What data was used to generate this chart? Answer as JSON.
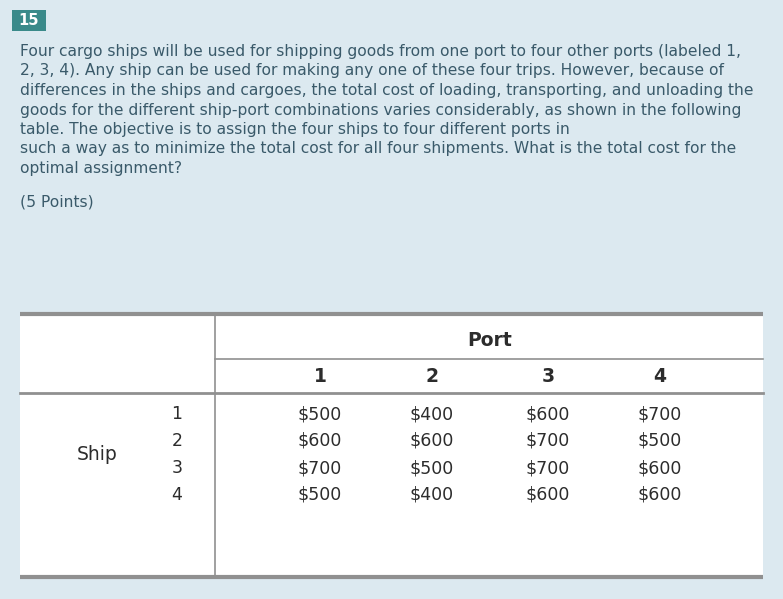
{
  "question_number": "15",
  "question_number_bg": "#3a8a8a",
  "question_number_color": "#ffffff",
  "background_color": "#dce9f0",
  "table_bg": "#ffffff",
  "table_outer_bg": "#dce9f0",
  "body_text_lines": [
    "Four cargo ships will be used for shipping goods from one port to four other ports (labeled 1,",
    "2, 3, 4). Any ship can be used for making any one of these four trips. However, because of",
    "differences in the ships and cargoes, the total cost of loading, transporting, and unloading the",
    "goods for the different ship-port combinations varies considerably, as shown in the following",
    "table. The objective is to assign the four ships to four different ports in",
    "such a way as to minimize the total cost for all four shipments. What is the total cost for the",
    "optimal assignment?"
  ],
  "points_text": "(5 Points)",
  "port_header": "Port",
  "port_cols": [
    "1",
    "2",
    "3",
    "4"
  ],
  "ship_label": "Ship",
  "ship_rows": [
    "1",
    "2",
    "3",
    "4"
  ],
  "table_data": [
    [
      "$500",
      "$400",
      "$600",
      "$700"
    ],
    [
      "$600",
      "$600",
      "$700",
      "$500"
    ],
    [
      "$700",
      "$500",
      "$700",
      "$600"
    ],
    [
      "$500",
      "$400",
      "$600",
      "$600"
    ]
  ],
  "text_color": "#3a5a6a",
  "table_text_color": "#2c2c2c",
  "line_color": "#909090",
  "body_fontsize": 11.2,
  "points_fontsize": 11.2,
  "table_data_fontsize": 12.5,
  "table_header_fontsize": 13.5,
  "badge_fontsize": 10.5
}
